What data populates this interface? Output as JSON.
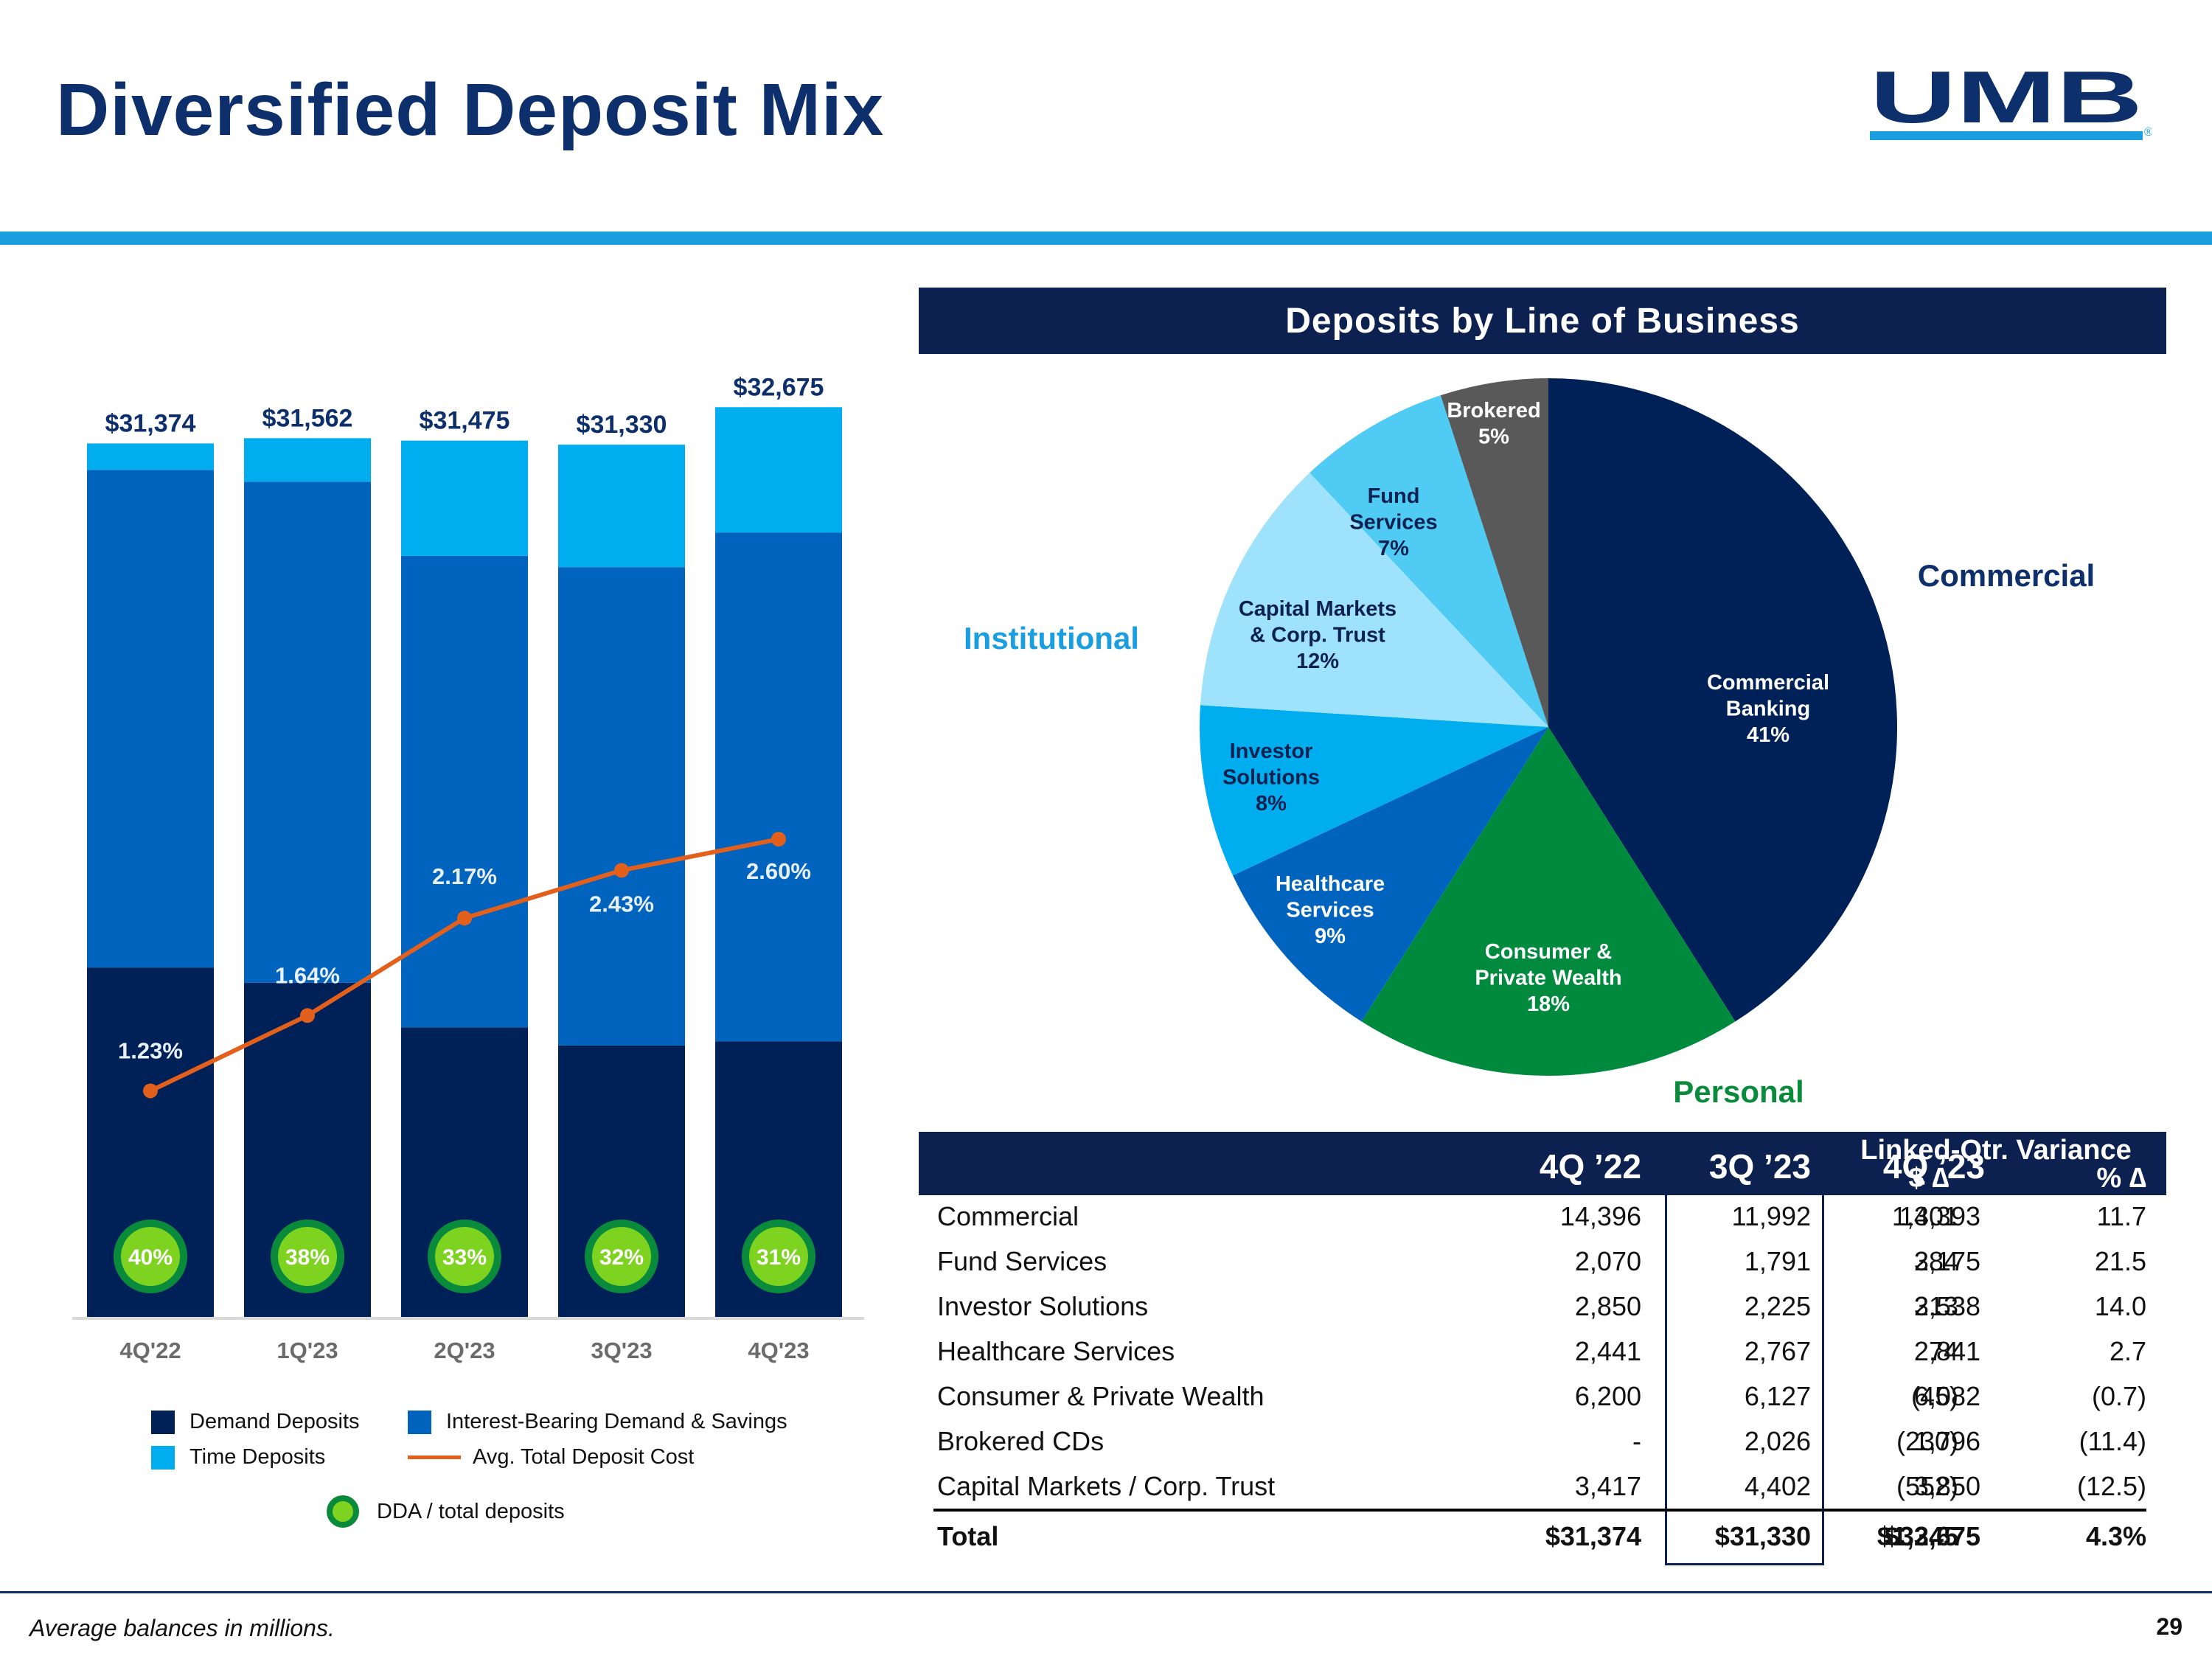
{
  "title": "Diversified Deposit Mix",
  "logo": {
    "text": "UMB",
    "registered": "®"
  },
  "colors": {
    "navy": "#0d2150",
    "title_blue": "#0d2f6b",
    "demand": "#002157",
    "interest_bearing": "#0063be",
    "time": "#00aeef",
    "line": "#e35f1c",
    "dda_fill": "#7ed321",
    "dda_ring": "#0a8b3c",
    "accent": "#1a9ee0"
  },
  "chart_data": [
    {
      "type": "bar",
      "stacked": true,
      "categories": [
        "4Q'22",
        "1Q'23",
        "2Q'23",
        "3Q'23",
        "4Q'23"
      ],
      "series": [
        {
          "name": "Demand Deposits",
          "values": [
            12550,
            12000,
            10400,
            9750,
            9900
          ]
        },
        {
          "name": "Interest-Bearing Demand & Savings",
          "values": [
            17874,
            18000,
            16937,
            17180,
            18275
          ]
        },
        {
          "name": "Time Deposits",
          "values": [
            950,
            1562,
            4138,
            4400,
            4500
          ]
        }
      ],
      "totals": [
        "$31,374",
        "$31,562",
        "$31,475",
        "$31,330",
        "$32,675"
      ],
      "line_series": {
        "name": "Avg. Total Deposit Cost",
        "values": [
          1.23,
          1.64,
          2.17,
          2.43,
          2.6
        ],
        "labels": [
          "1.23%",
          "1.64%",
          "2.17%",
          "2.43%",
          "2.60%"
        ],
        "ylim": [
          0,
          5
        ]
      },
      "dda_ratio": {
        "name": "DDA / total deposits",
        "labels": [
          "40%",
          "38%",
          "33%",
          "32%",
          "31%"
        ]
      },
      "ylim": [
        0,
        33000
      ],
      "xlabel": "",
      "ylabel": "",
      "legend": {
        "demand": "Demand Deposits",
        "interest": "Interest-Bearing Demand & Savings",
        "time": "Time Deposits",
        "line": "Avg. Total Deposit Cost",
        "dda": "DDA / total deposits"
      }
    },
    {
      "type": "pie",
      "title": "Deposits by Line of Business",
      "slices": [
        {
          "name": "Commercial Banking",
          "lines": [
            "Commercial",
            "Banking",
            "41%"
          ],
          "value": 41,
          "color": "#002157",
          "text_color": "#ffffff"
        },
        {
          "name": "Consumer & Private Wealth",
          "lines": [
            "Consumer &",
            "Private Wealth",
            "18%"
          ],
          "value": 18,
          "color": "#008a3e",
          "text_color": "#ffffff"
        },
        {
          "name": "Healthcare Services",
          "lines": [
            "Healthcare",
            "Services",
            "9%"
          ],
          "value": 9,
          "color": "#0063be",
          "text_color": "#ffffff"
        },
        {
          "name": "Investor Solutions",
          "lines": [
            "Investor",
            "Solutions",
            "8%"
          ],
          "value": 8,
          "color": "#00aeef",
          "text_color": "#0d2150"
        },
        {
          "name": "Capital Markets & Corp. Trust",
          "lines": [
            "Capital Markets",
            "& Corp. Trust",
            "12%"
          ],
          "value": 12,
          "color": "#9ee2fb",
          "text_color": "#0d2150"
        },
        {
          "name": "Fund Services",
          "lines": [
            "Fund",
            "Services",
            "7%"
          ],
          "value": 7,
          "color": "#4fcbf4",
          "text_color": "#0d2150"
        },
        {
          "name": "Brokered",
          "lines": [
            "Brokered",
            "5%"
          ],
          "value": 5,
          "color": "#595959",
          "text_color": "#ffffff"
        }
      ],
      "group_labels": [
        {
          "text": "Commercial",
          "color": "#0d2f6b"
        },
        {
          "text": "Institutional",
          "color": "#1a9ee0"
        },
        {
          "text": "Personal",
          "color": "#0a8b3c"
        }
      ]
    }
  ],
  "table": {
    "headers": {
      "q1": "4Q ’22",
      "q2": "3Q ’23",
      "q3": "4Q ’23",
      "variance": "Linked-Qtr. Variance",
      "dollar": "$ ∆",
      "pct": "% ∆"
    },
    "rows": [
      {
        "label": "Commercial",
        "q1": "14,396",
        "q2": "11,992",
        "q3": "13,393",
        "dollar": "1,401",
        "pct": "11.7"
      },
      {
        "label": "Fund Services",
        "q1": "2,070",
        "q2": "1,791",
        "q3": "2,175",
        "dollar": "384",
        "pct": "21.5"
      },
      {
        "label": "Investor Solutions",
        "q1": "2,850",
        "q2": "2,225",
        "q3": "2,538",
        "dollar": "313",
        "pct": "14.0"
      },
      {
        "label": "Healthcare Services",
        "q1": "2,441",
        "q2": "2,767",
        "q3": "2,841",
        "dollar": "74",
        "pct": "2.7"
      },
      {
        "label": "Consumer & Private Wealth",
        "q1": "6,200",
        "q2": "6,127",
        "q3": "6,082",
        "dollar": "(45)",
        "pct": "(0.7)"
      },
      {
        "label": "Brokered CDs",
        "q1": "-",
        "q2": "2,026",
        "q3": "1,796",
        "dollar": "(230)",
        "pct": "(11.4)"
      },
      {
        "label": "Capital Markets / Corp. Trust",
        "q1": "3,417",
        "q2": "4,402",
        "q3": "3,850",
        "dollar": "(552)",
        "pct": "(12.5)"
      }
    ],
    "total": {
      "label": "Total",
      "q1": "$31,374",
      "q2": "$31,330",
      "q3": "$32,675",
      "dollar": "$1,345",
      "pct": "4.3%"
    }
  },
  "footnote": "Average balances in millions.",
  "page_number": "29"
}
